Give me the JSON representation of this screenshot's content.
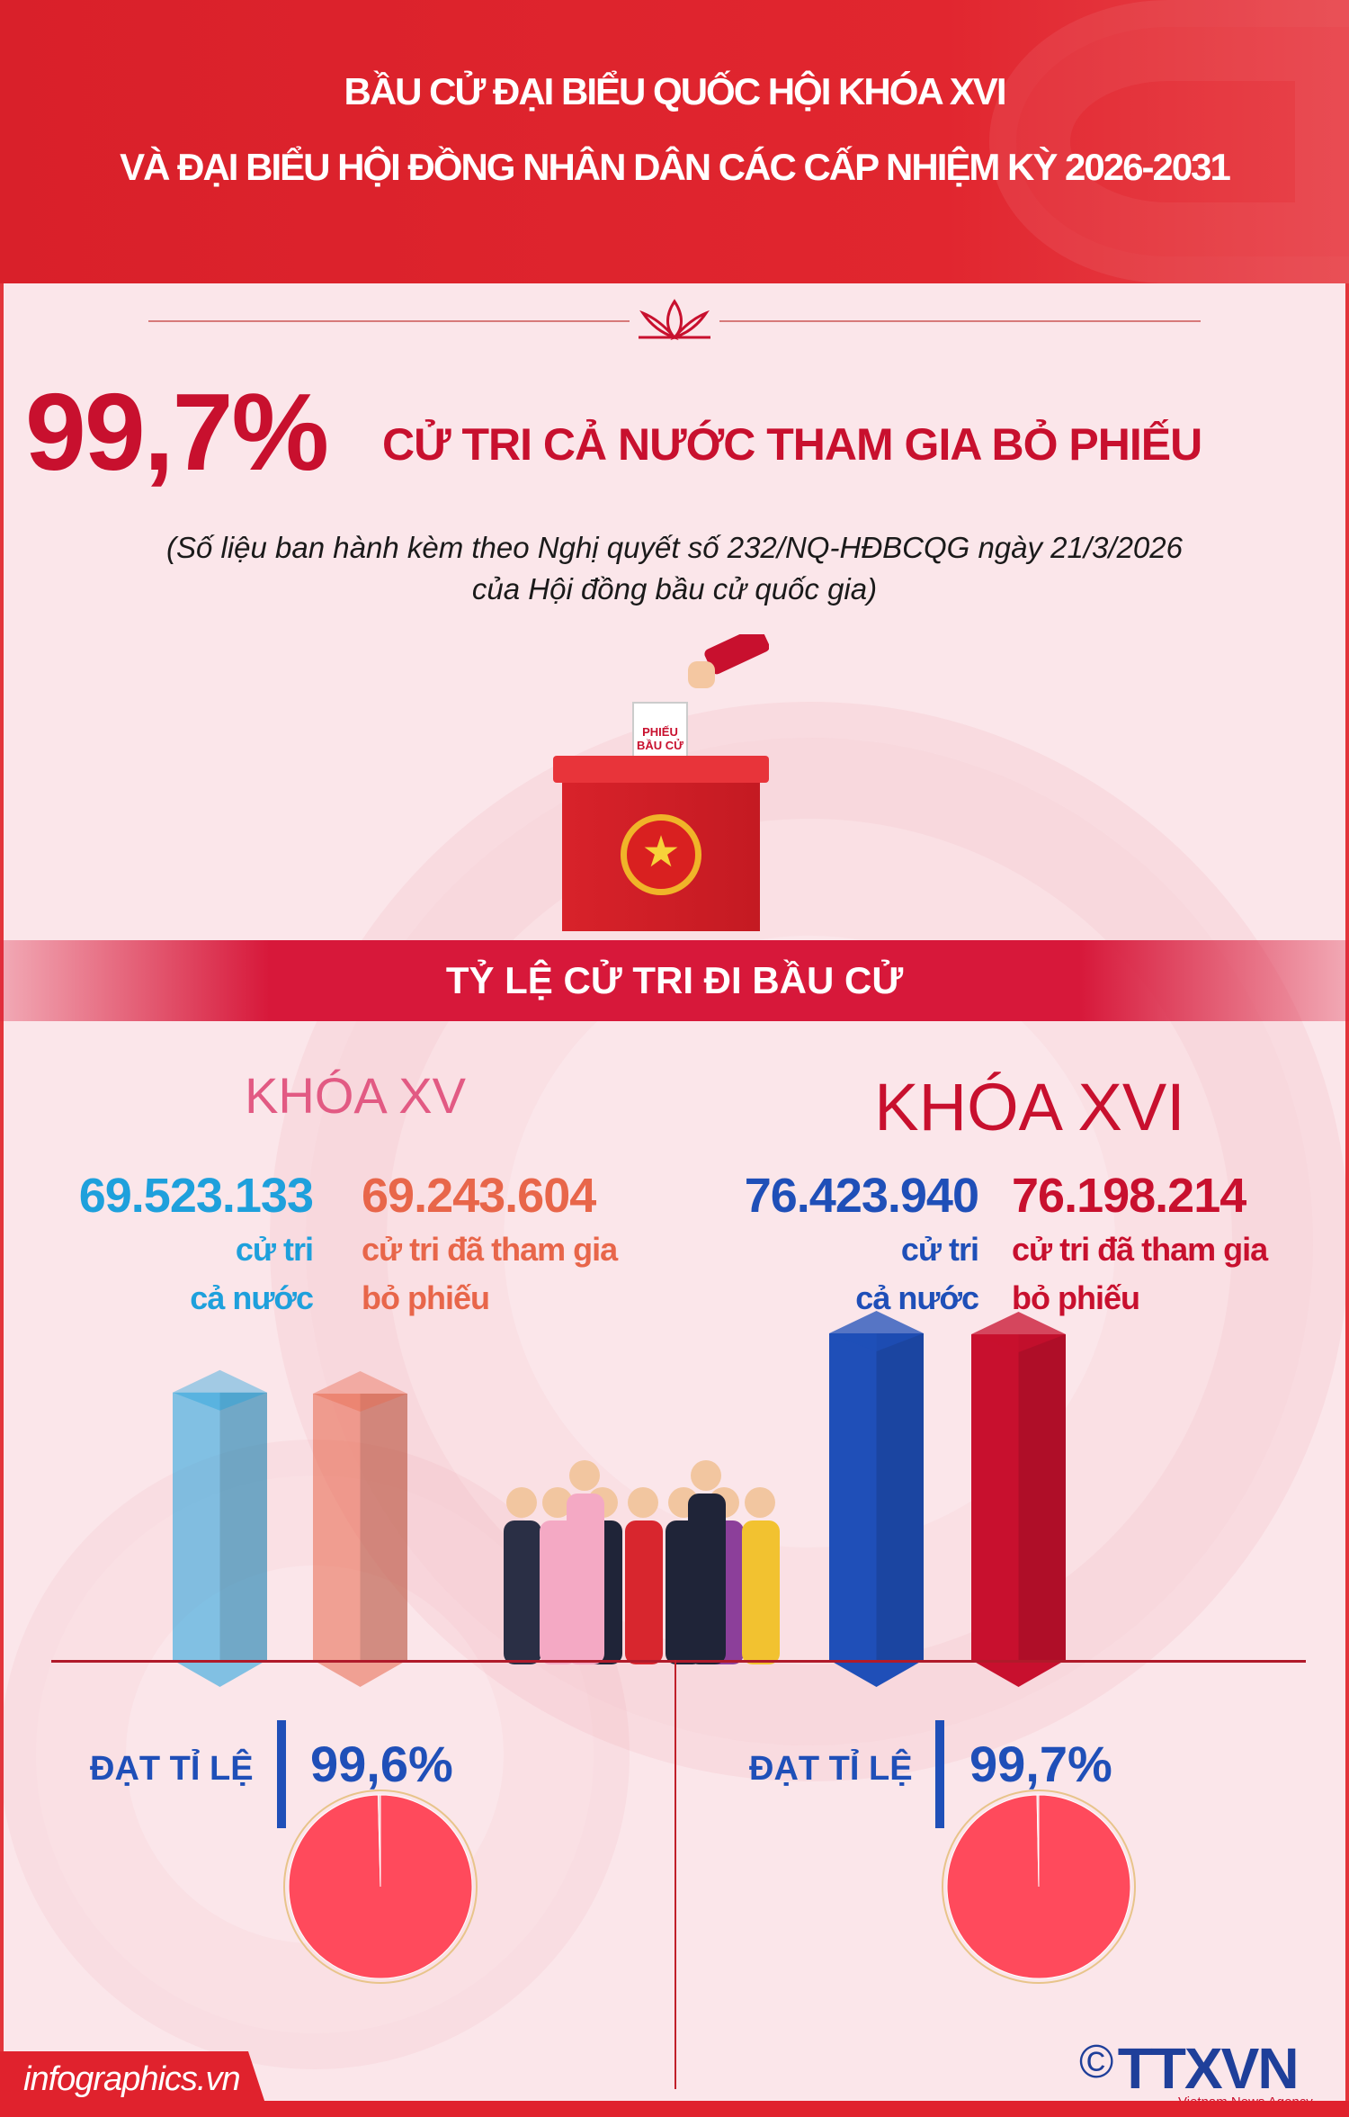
{
  "header": {
    "title_line1": "BẦU CỬ ĐẠI BIỂU QUỐC HỘI KHÓA XVI",
    "title_line2": "VÀ ĐẠI BIỂU HỘI ĐỒNG NHÂN DÂN CÁC CẤP NHIỆM KỲ 2026-2031"
  },
  "headline": {
    "percent": "99,7%",
    "text": "CỬ TRI CẢ NƯỚC THAM GIA BỎ PHIẾU"
  },
  "source": {
    "line1": "(Số liệu ban hành kèm theo Nghị quyết số 232/NQ-HĐBCQG ngày 21/3/2026",
    "line2": "của Hội đồng bầu cử quốc gia)"
  },
  "ballot": {
    "label_line1": "PHIẾU",
    "label_line2": "BẦU CỬ"
  },
  "banner": {
    "title": "TỶ LỆ CỬ TRI ĐI BẦU CỬ"
  },
  "terms": [
    {
      "name": "KHÓA XV",
      "total": "69.523.133",
      "total_label1": "cử tri",
      "total_label2": "cả nước",
      "voted": "69.243.604",
      "voted_label1": "cử tri đã tham gia",
      "voted_label2": "bỏ phiếu",
      "rate_label": "ĐẠT TỈ LỆ",
      "rate": "99,6%"
    },
    {
      "name": "KHÓA XVI",
      "total": "76.423.940",
      "total_label1": "cử tri",
      "total_label2": "cả nước",
      "voted": "76.198.214",
      "voted_label1": "cử tri đã tham gia",
      "voted_label2": "bỏ phiếu",
      "rate_label": "ĐẠT TỈ LỆ",
      "rate": "99,7%"
    }
  ],
  "colors": {
    "header_red": "#e1262f",
    "xv_total": "#1ea0dc",
    "xv_voted": "#e8664a",
    "xvi_total": "#1f4fb8",
    "xvi_voted": "#c8102e",
    "pie": "#ff4a5c"
  },
  "chart_data": [
    {
      "type": "bar",
      "categories": [
        "KHÓA XV",
        "KHÓA XVI"
      ],
      "series": [
        {
          "name": "cử tri cả nước",
          "values": [
            69523133,
            76423940
          ]
        },
        {
          "name": "cử tri đã tham gia bỏ phiếu",
          "values": [
            69243604,
            76198214
          ]
        }
      ]
    },
    {
      "type": "pie",
      "title": "KHÓA XV",
      "values": [
        99.6,
        0.4
      ]
    },
    {
      "type": "pie",
      "title": "KHÓA XVI",
      "values": [
        99.7,
        0.3
      ]
    }
  ],
  "footer": {
    "site": "infographics.vn",
    "logo": "TTXVN",
    "logo_sub": "Vietnam News Agency",
    "copyright": "©"
  }
}
